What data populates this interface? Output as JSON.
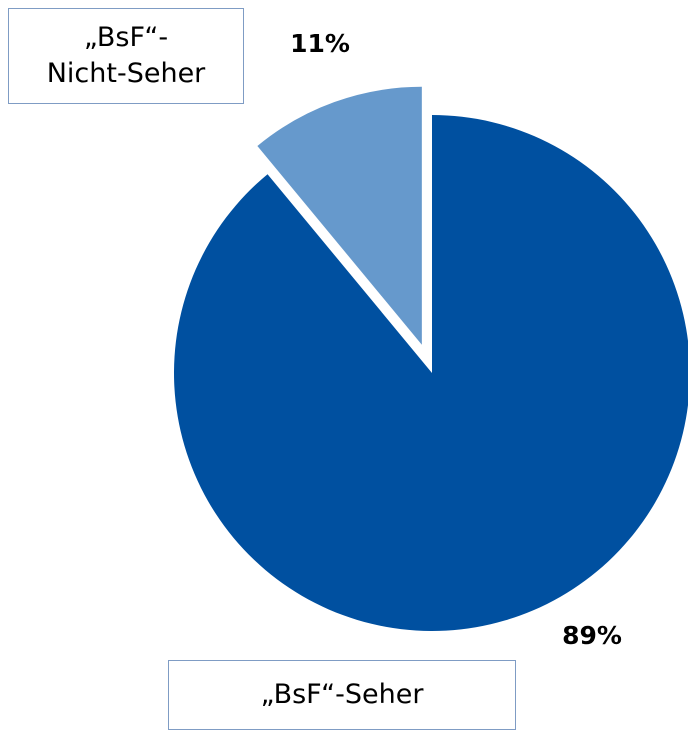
{
  "chart_data": {
    "type": "pie",
    "categories": [
      "„BsF“-Seher",
      "„BsF“-\nNicht-Seher"
    ],
    "values": [
      89,
      11
    ],
    "value_labels": [
      "89%",
      "11%"
    ],
    "colors": [
      "#0050a0",
      "#6699cc"
    ]
  }
}
